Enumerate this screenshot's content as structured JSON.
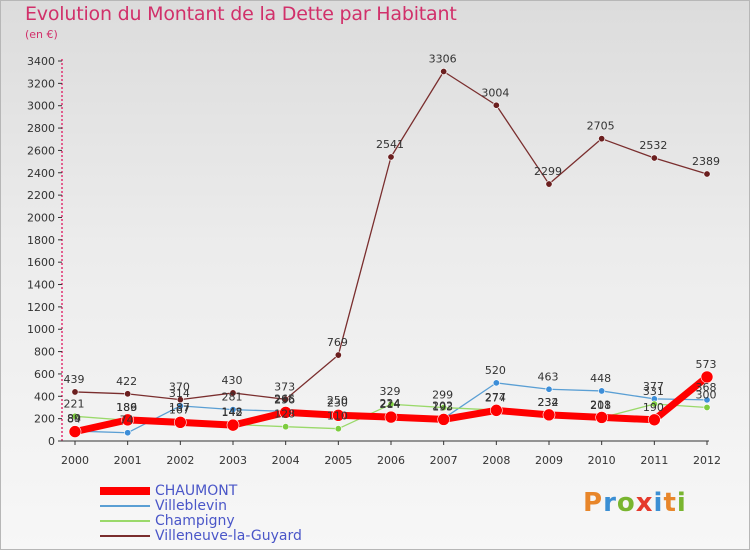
{
  "title": "Evolution du Montant de la Dette par Habitant",
  "subtitle": "(en €)",
  "logo": {
    "text": "Proxiti",
    "colors": [
      "#e8862a",
      "#3b8fd4",
      "#79b52f",
      "#e53a2c",
      "#3b8fd4",
      "#e8862a",
      "#79b52f"
    ]
  },
  "chart_data": {
    "type": "line",
    "x": [
      "2000",
      "2001",
      "2002",
      "2003",
      "2004",
      "2005",
      "2006",
      "2007",
      "2008",
      "2009",
      "2010",
      "2011",
      "2012"
    ],
    "ylim": [
      0,
      3400
    ],
    "yticks": [
      0,
      200,
      400,
      600,
      800,
      1000,
      1200,
      1400,
      1600,
      1800,
      2000,
      2200,
      2400,
      2600,
      2800,
      3000,
      3200,
      3400
    ],
    "grid": false,
    "legend_position": "bottom-left",
    "series": [
      {
        "name": "CHAUMONT",
        "color": "#ff0000",
        "width": 7,
        "marker": "#ff0000",
        "values": [
          84,
          189,
          167,
          142,
          256,
          230,
          214,
          193,
          274,
          234,
          211,
          190,
          573
        ],
        "labels": [
          "84",
          "189",
          "167",
          "142",
          "256",
          "230",
          "214",
          "193",
          "274",
          "234",
          "211",
          "190",
          "573"
        ]
      },
      {
        "name": "Villeblevin",
        "color": "#5a9fd4",
        "width": 1.3,
        "marker": "#3d8ed8",
        "values": [
          89,
          74,
          314,
          281,
          265,
          250,
          224,
          202,
          520,
          463,
          448,
          377,
          368
        ],
        "labels": [
          "89",
          "74",
          "314",
          "281",
          "265",
          "250",
          "224",
          "202",
          "520",
          "463",
          "448",
          "377",
          "368"
        ]
      },
      {
        "name": "Champigny",
        "color": "#9ad96a",
        "width": 1.3,
        "marker": "#7dcc3f",
        "values": [
          221,
          186,
          187,
          148,
          128,
          110,
          329,
          299,
          277,
          232,
          208,
          331,
          300
        ],
        "labels": [
          "221",
          "186",
          "187",
          "148",
          "128",
          "110",
          "329",
          "299",
          "277",
          "232",
          "208",
          "331",
          "300"
        ]
      },
      {
        "name": "Villeneuve-la-Guyard",
        "color": "#7a2e2e",
        "width": 1.3,
        "marker": "#6b1f1f",
        "values": [
          439,
          422,
          370,
          430,
          373,
          769,
          2541,
          3306,
          3004,
          2299,
          2705,
          2532,
          2389
        ],
        "labels": [
          "439",
          "422",
          "370",
          "430",
          "373",
          "769",
          "2541",
          "3306",
          "3004",
          "2299",
          "2705",
          "2532",
          "2389"
        ]
      }
    ]
  }
}
